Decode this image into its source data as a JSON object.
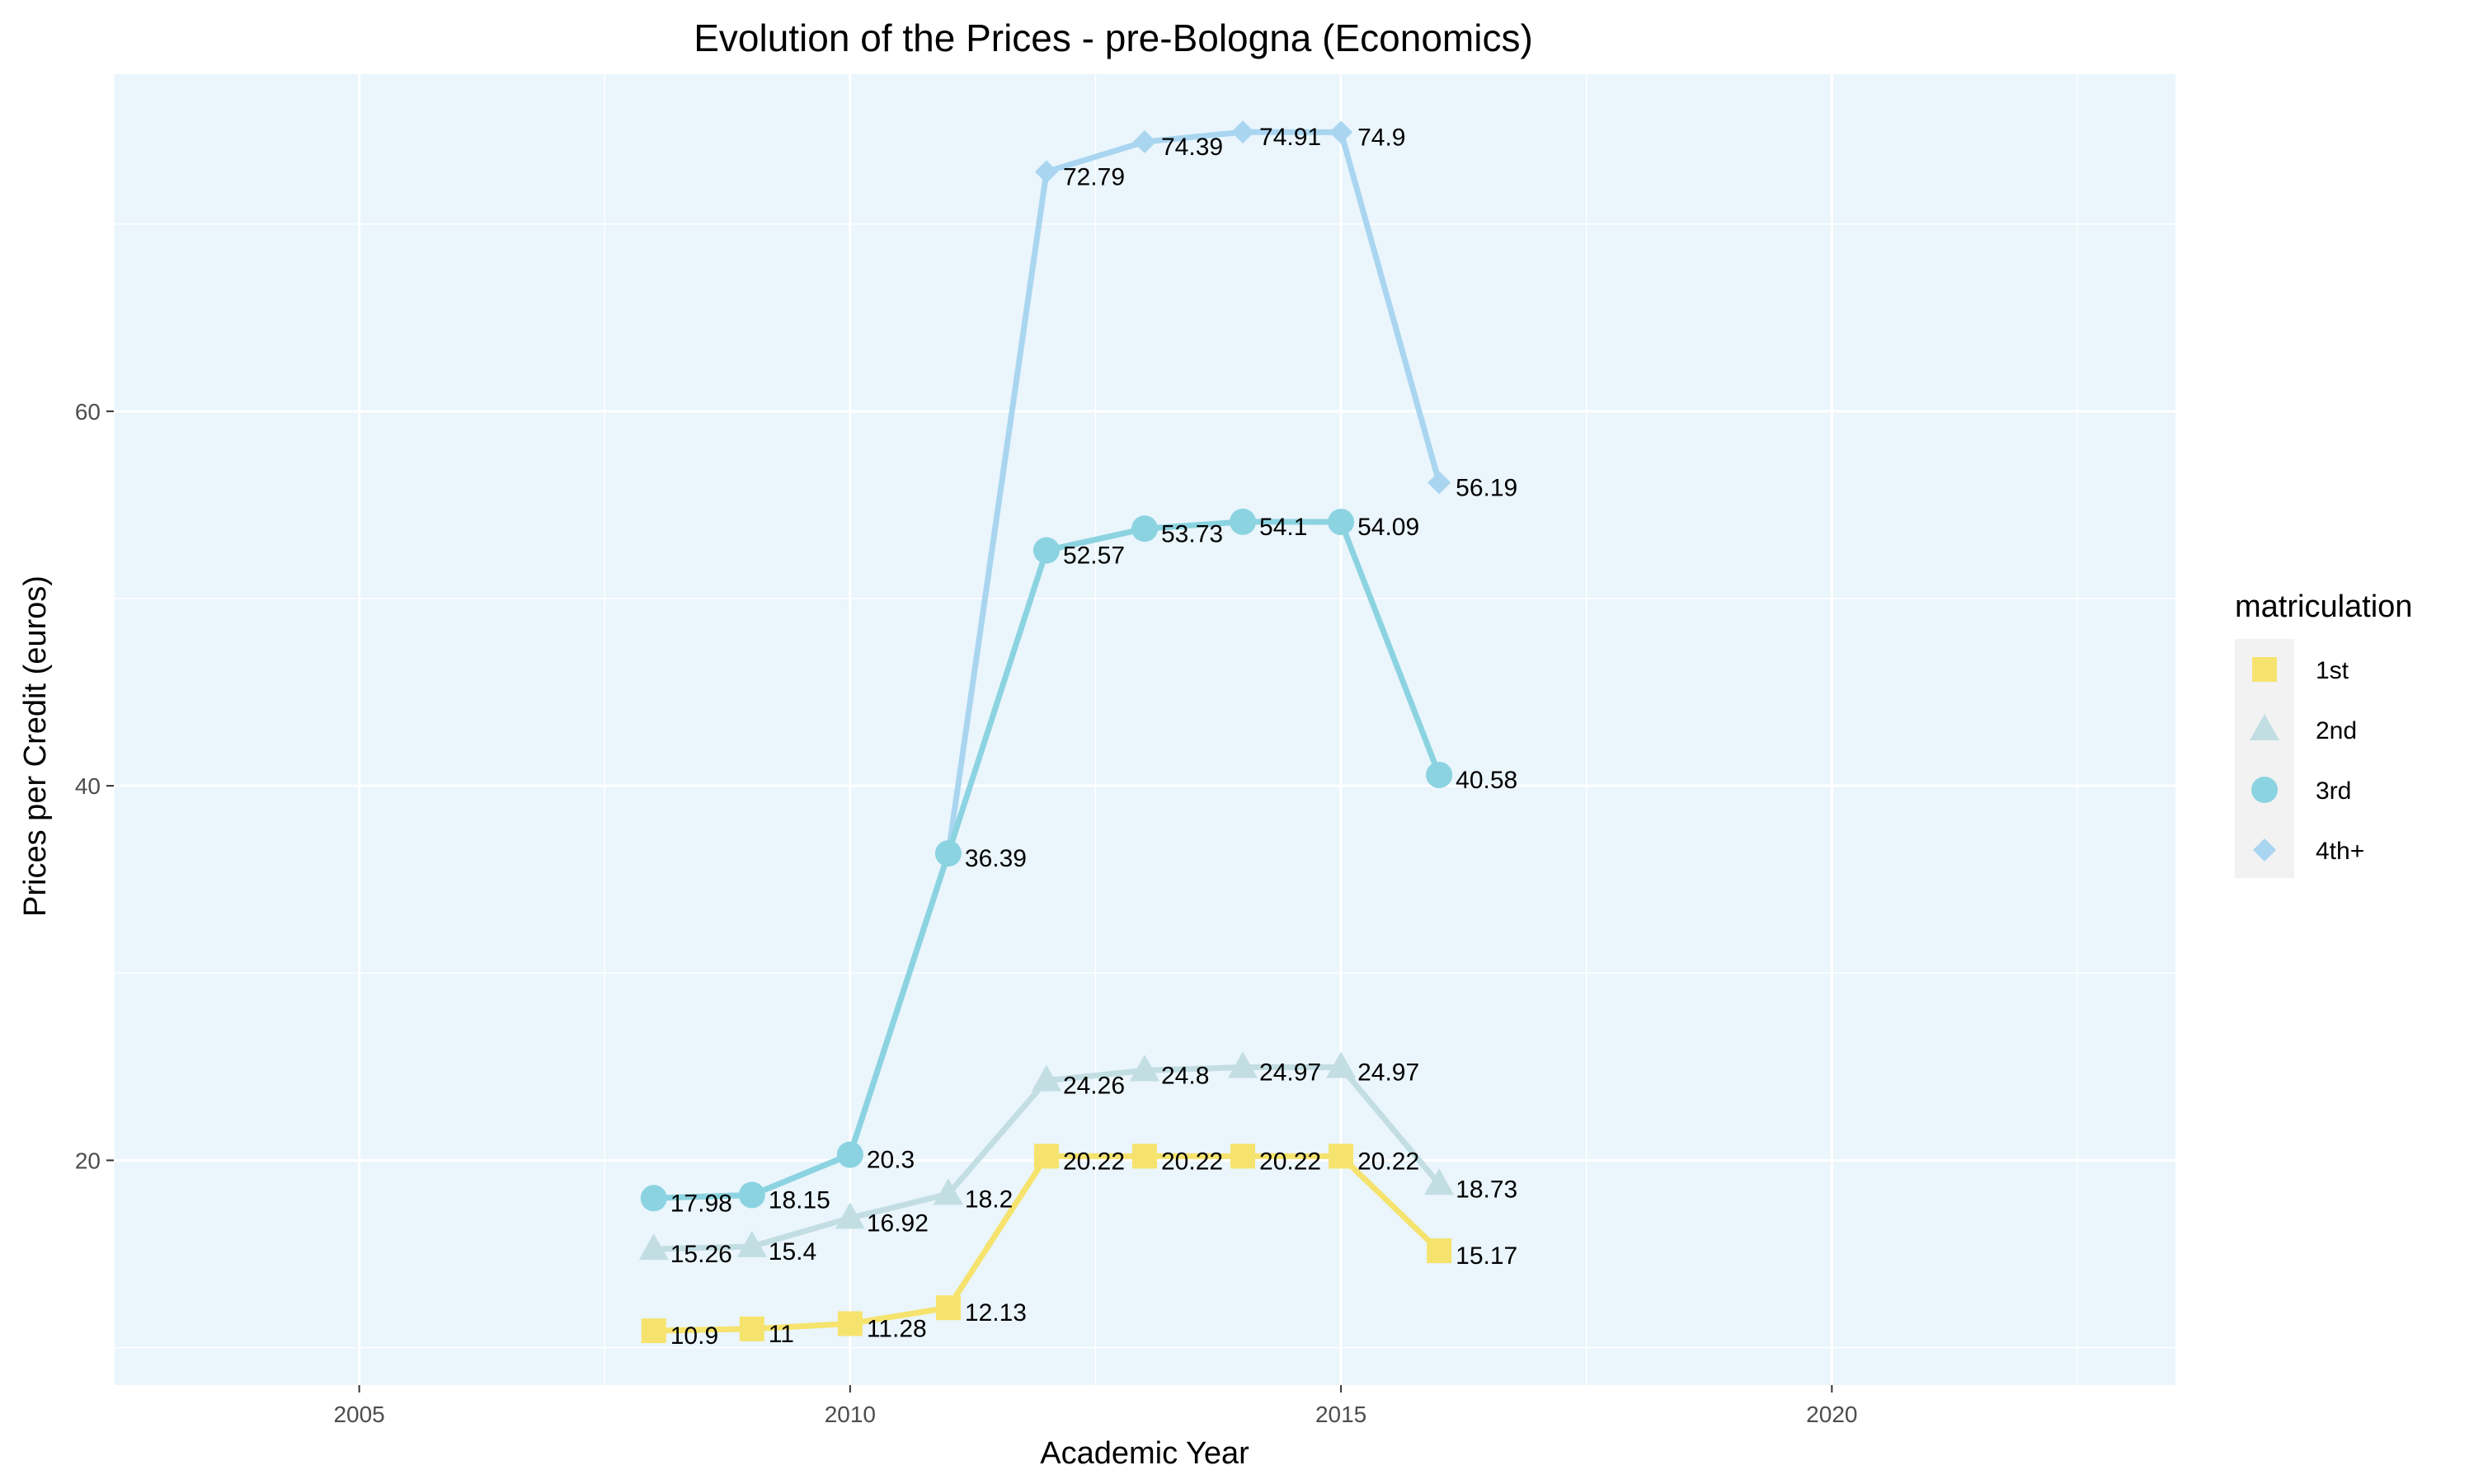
{
  "chart_data": {
    "type": "line",
    "title": "Evolution of the Prices - pre-Bologna (Economics)",
    "xlabel": "Academic Year",
    "ylabel": "Prices per Credit (euros)",
    "xlim": [
      2002.5,
      2023.5
    ],
    "ylim": [
      8,
      78
    ],
    "x_ticks": [
      2005,
      2010,
      2015,
      2020
    ],
    "y_ticks": [
      20,
      40,
      60
    ],
    "grid": true,
    "legend": {
      "title": "matriculation",
      "position": "right"
    },
    "series": [
      {
        "name": "1st",
        "color": "#F6E36D",
        "marker": "square",
        "x": [
          2008,
          2009,
          2010,
          2011,
          2012,
          2013,
          2014,
          2015,
          2016
        ],
        "y": [
          10.9,
          11,
          11.28,
          12.13,
          20.22,
          20.22,
          20.22,
          20.22,
          15.17
        ],
        "labels": [
          "10.9",
          "11",
          "11.28",
          "12.13",
          "20.22",
          "20.22",
          "20.22",
          "20.22",
          "15.17"
        ]
      },
      {
        "name": "2nd",
        "color": "#C2DEE3",
        "marker": "triangle",
        "x": [
          2008,
          2009,
          2010,
          2011,
          2012,
          2013,
          2014,
          2015,
          2016
        ],
        "y": [
          15.26,
          15.4,
          16.92,
          18.2,
          24.26,
          24.8,
          24.97,
          24.97,
          18.73
        ],
        "labels": [
          "15.26",
          "15.4",
          "16.92",
          "18.2",
          "24.26",
          "24.8",
          "24.97",
          "24.97",
          "18.73"
        ]
      },
      {
        "name": "3rd",
        "color": "#8BD3E0",
        "marker": "circle",
        "x": [
          2008,
          2009,
          2010,
          2011,
          2012,
          2013,
          2014,
          2015,
          2016
        ],
        "y": [
          17.98,
          18.15,
          20.3,
          36.39,
          52.57,
          53.73,
          54.1,
          54.09,
          40.58
        ],
        "labels": [
          "17.98",
          "18.15",
          "20.3",
          "36.39",
          "52.57",
          "53.73",
          "54.1",
          "54.09",
          "40.58"
        ]
      },
      {
        "name": "4th+",
        "color": "#A9D5F0",
        "marker": "diamond",
        "x": [
          2008,
          2009,
          2010,
          2011,
          2012,
          2013,
          2014,
          2015,
          2016
        ],
        "y": [
          17.98,
          18.15,
          20.3,
          36.39,
          72.79,
          74.39,
          74.91,
          74.9,
          56.19
        ],
        "labels": [
          "",
          "",
          "",
          "",
          "72.79",
          "74.39",
          "74.91",
          "74.9",
          "56.19"
        ]
      }
    ],
    "panel_color": "#EAF5FC",
    "grid_color": "#FFFFFF"
  }
}
